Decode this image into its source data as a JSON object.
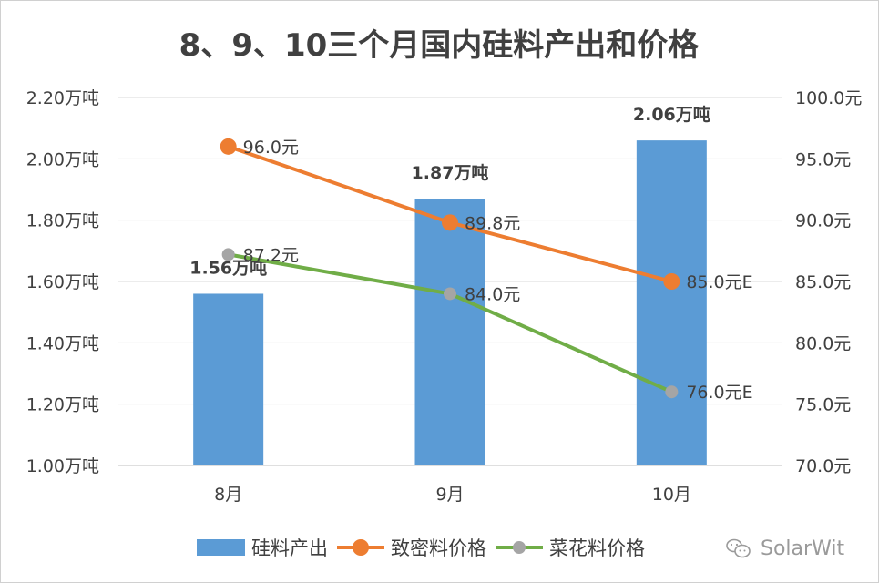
{
  "chart_data": {
    "type": "bar+line",
    "title": "8、9、10三个月国内硅料产出和价格",
    "categories": [
      "8月",
      "9月",
      "10月"
    ],
    "y_left": {
      "ylim": [
        1.0,
        2.2
      ],
      "ticks": [
        1.0,
        1.2,
        1.4,
        1.6,
        1.8,
        2.0,
        2.2
      ],
      "tick_labels": [
        "1.00万吨",
        "1.20万吨",
        "1.40万吨",
        "1.60万吨",
        "1.80万吨",
        "2.00万吨",
        "2.20万吨"
      ]
    },
    "y_right": {
      "ylim": [
        70,
        100
      ],
      "ticks": [
        70,
        75,
        80,
        85,
        90,
        95,
        100
      ],
      "tick_labels": [
        "70.0元",
        "75.0元",
        "80.0元",
        "85.0元",
        "90.0元",
        "95.0元",
        "100.0元"
      ]
    },
    "grid": true,
    "legend_position": "bottom",
    "series": [
      {
        "name": "硅料产出",
        "kind": "bar",
        "axis": "left",
        "color": "#5b9bd5",
        "values": [
          1.56,
          1.87,
          2.06
        ],
        "labels": [
          "1.56万吨",
          "1.87万吨",
          "2.06万吨"
        ]
      },
      {
        "name": "致密料价格",
        "kind": "line",
        "axis": "right",
        "color": "#ed7d31",
        "values": [
          96.0,
          89.8,
          85.0
        ],
        "labels": [
          "96.0元",
          "89.8元",
          "85.0元E"
        ]
      },
      {
        "name": "菜花料价格",
        "kind": "line",
        "axis": "right",
        "color": "#70ad47",
        "marker_color": "#a5a5a5",
        "values": [
          87.2,
          84.0,
          76.0
        ],
        "labels": [
          "87.2元",
          "84.0元",
          "76.0元E"
        ]
      }
    ]
  },
  "watermark": "SolarWit",
  "watermark_icon": "wechat-icon"
}
